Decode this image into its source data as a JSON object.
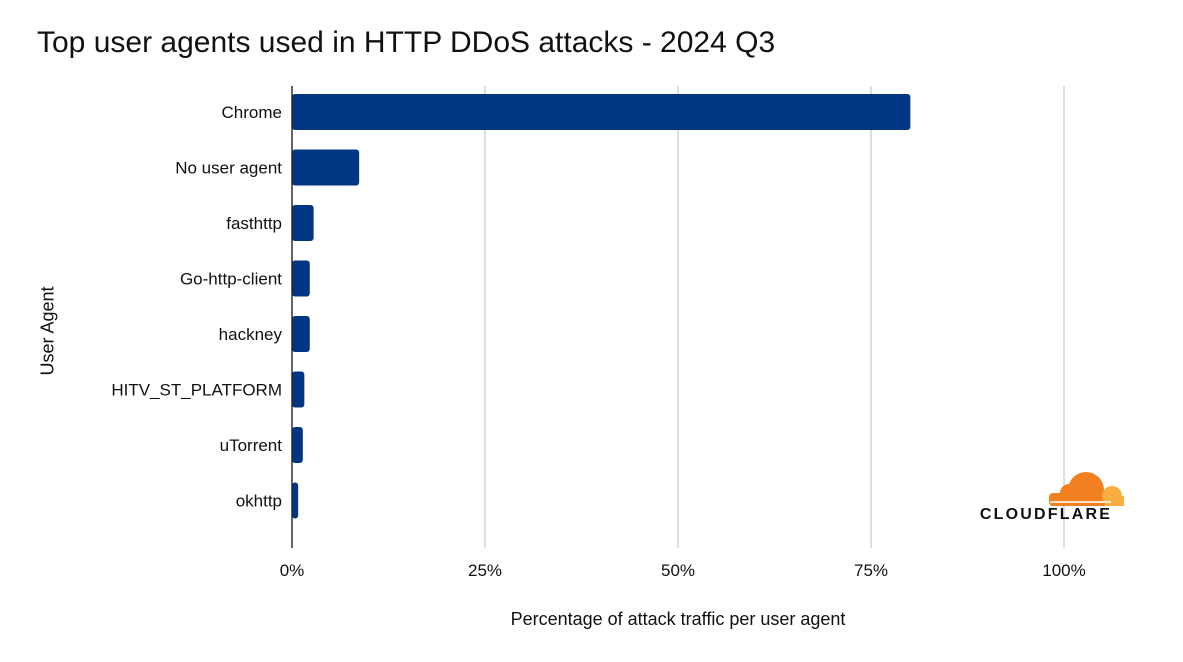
{
  "chart_data": {
    "type": "bar",
    "orientation": "horizontal",
    "title": "Top user agents used in HTTP DDoS attacks - 2024 Q3",
    "xlabel": "Percentage of attack traffic per user agent",
    "ylabel": "User Agent",
    "categories": [
      "Chrome",
      "No user agent",
      "fasthttp",
      "Go-http-client",
      "hackney",
      "HITV_ST_PLATFORM",
      "uTorrent",
      "okhttp"
    ],
    "values": [
      80.1,
      8.7,
      2.8,
      2.3,
      2.3,
      1.6,
      1.4,
      0.8
    ],
    "unit": "%",
    "xlim": [
      0,
      100
    ],
    "xticks": [
      0,
      25,
      50,
      75,
      100
    ],
    "xtick_labels": [
      "0%",
      "25%",
      "50%",
      "75%",
      "100%"
    ],
    "bar_color": "#003682",
    "grid": "vertical"
  },
  "brand": {
    "name": "CLOUDFLARE",
    "colors": {
      "orange": "#f38020",
      "light_orange": "#faae40"
    }
  }
}
